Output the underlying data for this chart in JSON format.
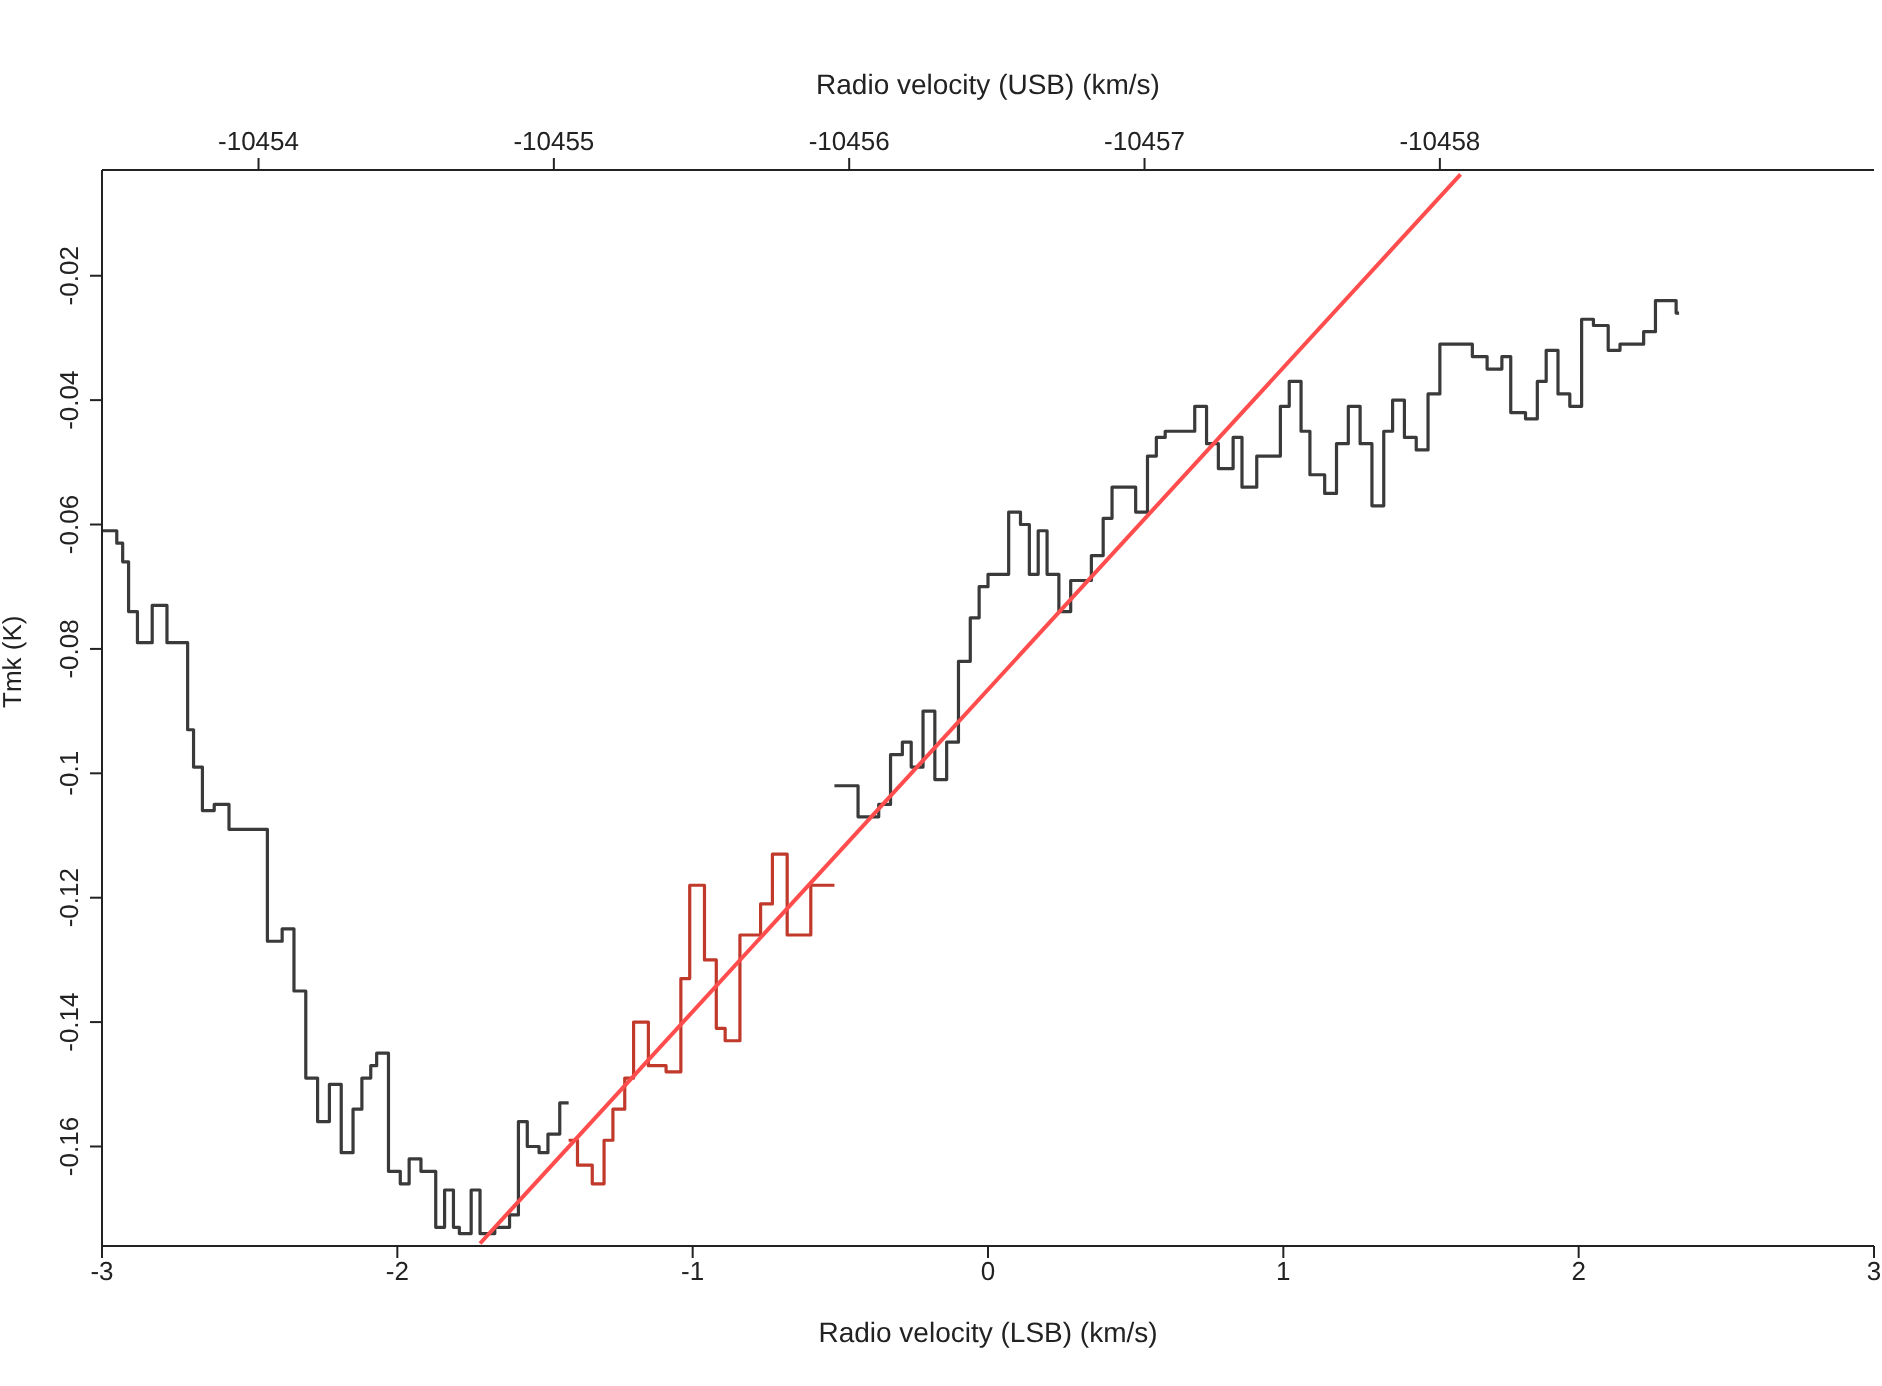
{
  "chart_data": {
    "type": "step",
    "xlabel": "Radio velocity (LSB) (km/s)",
    "x2label": "Radio velocity (USB) (km/s)",
    "ylabel": "Tmk (K)",
    "xlim": [
      -3,
      3
    ],
    "xticks": [
      -3,
      -2,
      -1,
      0,
      1,
      2,
      3
    ],
    "x2lim": [
      -10453.47,
      -10459.47
    ],
    "x2ticks": [
      -10454,
      -10455,
      -10456,
      -10457,
      -10458
    ],
    "ylim": [
      -0.176,
      -0.003
    ],
    "yticks": [
      -0.16,
      -0.14,
      -0.12,
      -0.1,
      -0.08,
      -0.06,
      -0.04,
      -0.02
    ],
    "series": [
      {
        "color": "#3a3a3a",
        "x": [
          -3.0,
          -2.95,
          -2.93,
          -2.91,
          -2.88,
          -2.83,
          -2.78,
          -2.71,
          -2.69,
          -2.66,
          -2.62,
          -2.57,
          -2.44,
          -2.39,
          -2.35,
          -2.31,
          -2.27,
          -2.23,
          -2.19,
          -2.15,
          -2.12,
          -2.09,
          -2.07,
          -2.03,
          -1.99,
          -1.96,
          -1.92,
          -1.87,
          -1.84,
          -1.81,
          -1.79,
          -1.75,
          -1.72,
          -1.67,
          -1.62,
          -1.59,
          -1.56,
          -1.52,
          -1.49,
          -1.45,
          -1.42
        ],
        "values": [
          -0.061,
          -0.063,
          -0.066,
          -0.074,
          -0.079,
          -0.073,
          -0.079,
          -0.093,
          -0.099,
          -0.106,
          -0.105,
          -0.109,
          -0.127,
          -0.125,
          -0.135,
          -0.149,
          -0.156,
          -0.15,
          -0.161,
          -0.154,
          -0.149,
          -0.147,
          -0.145,
          -0.164,
          -0.166,
          -0.162,
          -0.164,
          -0.173,
          -0.167,
          -0.173,
          -0.174,
          -0.167,
          -0.174,
          -0.173,
          -0.171,
          -0.156,
          -0.16,
          -0.161,
          -0.158,
          -0.153,
          -0.153
        ]
      },
      {
        "color": "#c0392b",
        "x": [
          -1.42,
          -1.39,
          -1.34,
          -1.3,
          -1.27,
          -1.23,
          -1.2,
          -1.15,
          -1.09,
          -1.04,
          -1.01,
          -0.96,
          -0.92,
          -0.89,
          -0.84,
          -0.77,
          -0.73,
          -0.68,
          -0.6,
          -0.52
        ],
        "values": [
          -0.159,
          -0.163,
          -0.166,
          -0.159,
          -0.154,
          -0.149,
          -0.14,
          -0.147,
          -0.148,
          -0.133,
          -0.118,
          -0.13,
          -0.141,
          -0.143,
          -0.126,
          -0.121,
          -0.113,
          -0.126,
          -0.118,
          -0.118
        ]
      },
      {
        "color": "#3a3a3a",
        "x": [
          -0.52,
          -0.44,
          -0.37,
          -0.33,
          -0.29,
          -0.26,
          -0.22,
          -0.18,
          -0.14,
          -0.1,
          -0.06,
          -0.03,
          0.0,
          0.07,
          0.11,
          0.14,
          0.17,
          0.2,
          0.24,
          0.28,
          0.35,
          0.39,
          0.42,
          0.5,
          0.54,
          0.57,
          0.6,
          0.7,
          0.74,
          0.78,
          0.83,
          0.86,
          0.91,
          0.99,
          1.02,
          1.06,
          1.09,
          1.14,
          1.18,
          1.22,
          1.26,
          1.3,
          1.34,
          1.37,
          1.41,
          1.45,
          1.49,
          1.53,
          1.64,
          1.69,
          1.74,
          1.77,
          1.82,
          1.86,
          1.89,
          1.93,
          1.97,
          2.01,
          2.05,
          2.1,
          2.14,
          2.22,
          2.26,
          2.33,
          2.34
        ],
        "values": [
          -0.102,
          -0.107,
          -0.105,
          -0.097,
          -0.095,
          -0.099,
          -0.09,
          -0.101,
          -0.095,
          -0.082,
          -0.075,
          -0.07,
          -0.068,
          -0.058,
          -0.06,
          -0.068,
          -0.061,
          -0.068,
          -0.074,
          -0.069,
          -0.065,
          -0.059,
          -0.054,
          -0.058,
          -0.049,
          -0.046,
          -0.045,
          -0.041,
          -0.047,
          -0.051,
          -0.046,
          -0.054,
          -0.049,
          -0.041,
          -0.037,
          -0.045,
          -0.052,
          -0.055,
          -0.047,
          -0.041,
          -0.047,
          -0.057,
          -0.045,
          -0.04,
          -0.046,
          -0.048,
          -0.039,
          -0.031,
          -0.033,
          -0.035,
          -0.033,
          -0.042,
          -0.043,
          -0.037,
          -0.032,
          -0.039,
          -0.041,
          -0.027,
          -0.028,
          -0.032,
          -0.031,
          -0.029,
          -0.024,
          -0.026,
          -0.026
        ]
      },
      {
        "type": "line",
        "color": "#ff4d4d",
        "x": [
          -1.72,
          1.6
        ],
        "values": [
          -0.1756,
          -0.0037
        ]
      }
    ]
  }
}
